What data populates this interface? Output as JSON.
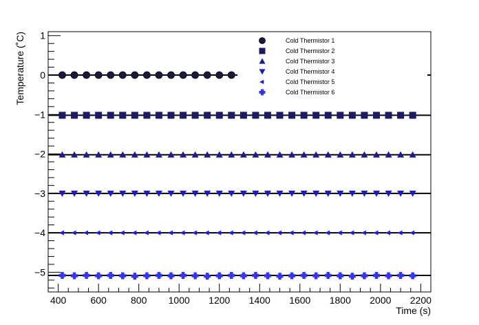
{
  "chart_data": {
    "type": "scatter",
    "title": "",
    "xlabel": "Time (s)",
    "ylabel": "Temperature (˚C)",
    "xlim": [
      350,
      2250
    ],
    "ylim": [
      -5.5,
      1.1
    ],
    "xticks": [
      400,
      600,
      800,
      1000,
      1200,
      1400,
      1600,
      1800,
      2000,
      2200
    ],
    "yticks": [
      1,
      0,
      -1,
      -2,
      -3,
      -4,
      -5
    ],
    "legend_position": "top-right",
    "grid": false,
    "series": [
      {
        "name": "Cold Thermistor 1",
        "marker": "circle",
        "color": "#1a1a40",
        "line_x": [
          350,
          1290
        ],
        "line_y": 0,
        "x": [
          420,
          480,
          540,
          600,
          660,
          720,
          780,
          840,
          900,
          960,
          1020,
          1080,
          1140,
          1200,
          1260
        ],
        "y": [
          0,
          0,
          0,
          0,
          0,
          0,
          0,
          0,
          0,
          0,
          0,
          0,
          0,
          0,
          0
        ]
      },
      {
        "name": "Cold Thermistor 2",
        "marker": "square",
        "color": "#1a1a66",
        "line_x": [
          350,
          2250
        ],
        "line_y": -1.02,
        "x": [
          420,
          480,
          540,
          600,
          660,
          720,
          780,
          840,
          900,
          960,
          1020,
          1080,
          1140,
          1200,
          1260,
          1320,
          1380,
          1440,
          1500,
          1560,
          1620,
          1680,
          1740,
          1800,
          1860,
          1920,
          1980,
          2040,
          2100,
          2160
        ],
        "y": [
          -1.02,
          -1.02,
          -1.02,
          -1.02,
          -1.02,
          -1.02,
          -1.02,
          -1.02,
          -1.02,
          -1.02,
          -1.02,
          -1.02,
          -1.02,
          -1.02,
          -1.02,
          -1.02,
          -1.02,
          -1.02,
          -1.02,
          -1.02,
          -1.02,
          -1.02,
          -1.02,
          -1.02,
          -1.02,
          -1.02,
          -1.02,
          -1.02,
          -1.02,
          -1.02
        ]
      },
      {
        "name": "Cold Thermistor 3",
        "marker": "triangle-up",
        "color": "#1a1a99",
        "line_x": [
          350,
          2250
        ],
        "line_y": -2.02,
        "x": [
          420,
          480,
          540,
          600,
          660,
          720,
          780,
          840,
          900,
          960,
          1020,
          1080,
          1140,
          1200,
          1260,
          1320,
          1380,
          1440,
          1500,
          1560,
          1620,
          1680,
          1740,
          1800,
          1860,
          1920,
          1980,
          2040,
          2100,
          2160
        ],
        "y": [
          -2.02,
          -2.02,
          -2.02,
          -2.02,
          -2.02,
          -2.02,
          -2.02,
          -2.02,
          -2.02,
          -2.02,
          -2.02,
          -2.02,
          -2.02,
          -2.02,
          -2.02,
          -2.02,
          -2.02,
          -2.02,
          -2.02,
          -2.02,
          -2.02,
          -2.02,
          -2.02,
          -2.02,
          -2.02,
          -2.02,
          -2.02,
          -2.02,
          -2.02,
          -2.02
        ]
      },
      {
        "name": "Cold Thermistor 4",
        "marker": "triangle-down",
        "color": "#1a1acc",
        "line_x": [
          350,
          2250
        ],
        "line_y": -3.0,
        "x": [
          420,
          480,
          540,
          600,
          660,
          720,
          780,
          840,
          900,
          960,
          1020,
          1080,
          1140,
          1200,
          1260,
          1320,
          1380,
          1440,
          1500,
          1560,
          1620,
          1680,
          1740,
          1800,
          1860,
          1920,
          1980,
          2040,
          2100,
          2160
        ],
        "y": [
          -3.0,
          -3.0,
          -3.0,
          -3.0,
          -3.0,
          -3.0,
          -3.0,
          -3.0,
          -3.0,
          -3.0,
          -3.0,
          -3.0,
          -3.0,
          -3.0,
          -3.0,
          -3.0,
          -3.0,
          -3.0,
          -3.0,
          -3.0,
          -3.0,
          -3.0,
          -3.0,
          -3.0,
          -3.0,
          -3.0,
          -3.0,
          -3.0,
          -3.0,
          -3.0
        ]
      },
      {
        "name": "Cold Thermistor 5",
        "marker": "triangle-left",
        "color": "#1a1aee",
        "line_x": [
          350,
          2250
        ],
        "line_y": -4.0,
        "x": [
          420,
          480,
          540,
          600,
          660,
          720,
          780,
          840,
          900,
          960,
          1020,
          1080,
          1140,
          1200,
          1260,
          1320,
          1380,
          1440,
          1500,
          1560,
          1620,
          1680,
          1740,
          1800,
          1860,
          1920,
          1980,
          2040,
          2100,
          2160
        ],
        "y": [
          -4.0,
          -4.0,
          -4.0,
          -4.0,
          -4.0,
          -4.0,
          -4.0,
          -4.0,
          -4.0,
          -4.0,
          -4.0,
          -4.0,
          -4.0,
          -4.0,
          -4.0,
          -4.0,
          -4.0,
          -4.0,
          -4.0,
          -4.0,
          -4.0,
          -4.0,
          -4.0,
          -4.0,
          -4.0,
          -4.0,
          -4.0,
          -4.0,
          -4.0,
          -4.0
        ]
      },
      {
        "name": "Cold Thermistor 6",
        "marker": "cross",
        "color": "#3333ff",
        "line_x": [
          350,
          2250
        ],
        "line_y": -5.08,
        "x": [
          420,
          480,
          540,
          600,
          660,
          720,
          780,
          840,
          900,
          960,
          1020,
          1080,
          1140,
          1200,
          1260,
          1320,
          1380,
          1440,
          1500,
          1560,
          1620,
          1680,
          1740,
          1800,
          1860,
          1920,
          1980,
          2040,
          2100,
          2160
        ],
        "y": [
          -5.08,
          -5.09,
          -5.08,
          -5.09,
          -5.08,
          -5.09,
          -5.1,
          -5.09,
          -5.08,
          -5.09,
          -5.08,
          -5.09,
          -5.1,
          -5.09,
          -5.08,
          -5.09,
          -5.08,
          -5.09,
          -5.1,
          -5.09,
          -5.08,
          -5.09,
          -5.08,
          -5.09,
          -5.1,
          -5.09,
          -5.08,
          -5.09,
          -5.08,
          -5.09
        ]
      }
    ]
  }
}
